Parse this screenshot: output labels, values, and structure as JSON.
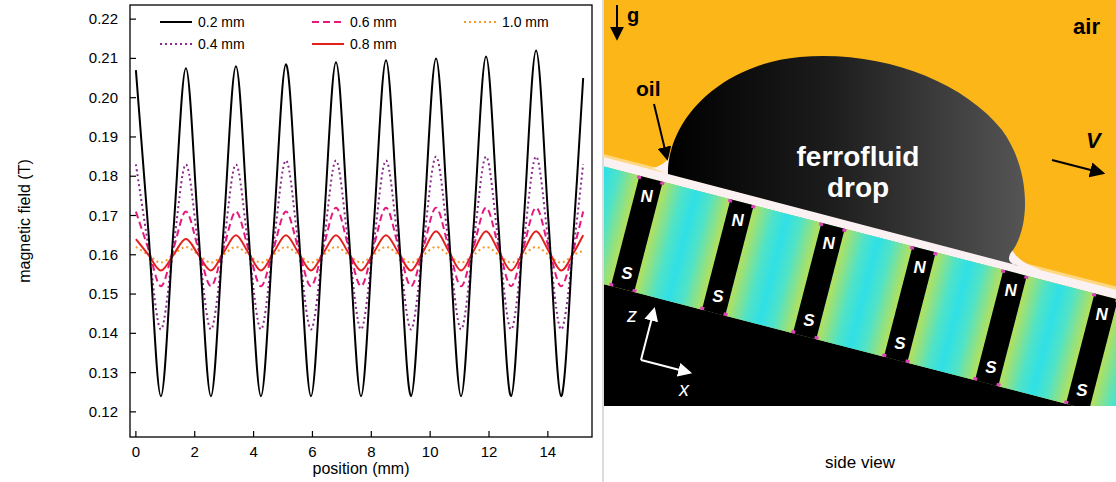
{
  "chart_data": {
    "type": "line",
    "x_label": "position (mm)",
    "y_label": "magnetic field (T)",
    "x": [
      0,
      0.425,
      0.85,
      1.275,
      1.7,
      2.125,
      2.55,
      2.975,
      3.4,
      3.825,
      4.25,
      4.675,
      5.1,
      5.525,
      5.95,
      6.375,
      6.8,
      7.225,
      7.65,
      8.075,
      8.5,
      8.925,
      9.35,
      9.775,
      10.2,
      10.625,
      11.05,
      11.475,
      11.9,
      12.325,
      12.75,
      13.175,
      13.6,
      14.025,
      14.45,
      14.875,
      15.2
    ],
    "series": [
      {
        "name": "0.2 mm",
        "color": "#000000",
        "line_style": "solid",
        "values": [
          0.207,
          0.166,
          0.124,
          0.166,
          0.2075,
          0.166,
          0.124,
          0.166,
          0.208,
          0.166,
          0.124,
          0.166,
          0.2085,
          0.1665,
          0.124,
          0.1665,
          0.209,
          0.1665,
          0.124,
          0.1665,
          0.2095,
          0.1665,
          0.124,
          0.167,
          0.21,
          0.167,
          0.124,
          0.167,
          0.2105,
          0.167,
          0.124,
          0.168,
          0.212,
          0.168,
          0.124,
          0.166,
          0.205
        ]
      },
      {
        "name": "0.4 mm",
        "color": "#8a2a8c",
        "line_style": "dotted",
        "values": [
          0.183,
          0.162,
          0.141,
          0.162,
          0.183,
          0.162,
          0.141,
          0.162,
          0.183,
          0.162,
          0.141,
          0.1625,
          0.184,
          0.1625,
          0.141,
          0.1625,
          0.184,
          0.1625,
          0.141,
          0.1625,
          0.184,
          0.1625,
          0.141,
          0.163,
          0.185,
          0.163,
          0.141,
          0.163,
          0.185,
          0.163,
          0.141,
          0.163,
          0.185,
          0.163,
          0.141,
          0.162,
          0.183
        ]
      },
      {
        "name": "0.6 mm",
        "color": "#e8177d",
        "line_style": "dashed",
        "values": [
          0.171,
          0.1615,
          0.152,
          0.1615,
          0.171,
          0.1615,
          0.152,
          0.1615,
          0.171,
          0.1615,
          0.152,
          0.1615,
          0.171,
          0.1615,
          0.152,
          0.162,
          0.172,
          0.162,
          0.152,
          0.162,
          0.172,
          0.162,
          0.152,
          0.162,
          0.172,
          0.162,
          0.152,
          0.162,
          0.172,
          0.162,
          0.152,
          0.162,
          0.172,
          0.162,
          0.152,
          0.1615,
          0.171
        ]
      },
      {
        "name": "0.8 mm",
        "color": "#e3201c",
        "line_style": "solid",
        "values": [
          0.164,
          0.16,
          0.156,
          0.16,
          0.164,
          0.16,
          0.156,
          0.1605,
          0.165,
          0.1605,
          0.156,
          0.1605,
          0.165,
          0.1605,
          0.156,
          0.1605,
          0.165,
          0.1605,
          0.156,
          0.1605,
          0.165,
          0.1605,
          0.156,
          0.161,
          0.166,
          0.161,
          0.156,
          0.161,
          0.166,
          0.161,
          0.156,
          0.161,
          0.166,
          0.161,
          0.156,
          0.1605,
          0.165
        ]
      },
      {
        "name": "1.0 mm",
        "color": "#f39a2b",
        "line_style": "dotted",
        "values": [
          0.162,
          0.16,
          0.158,
          0.16,
          0.162,
          0.16,
          0.158,
          0.16,
          0.162,
          0.16,
          0.158,
          0.16,
          0.162,
          0.16,
          0.158,
          0.16,
          0.162,
          0.16,
          0.158,
          0.16,
          0.162,
          0.16,
          0.158,
          0.16,
          0.162,
          0.16,
          0.158,
          0.16,
          0.162,
          0.16,
          0.158,
          0.16,
          0.162,
          0.16,
          0.158,
          0.16,
          0.161
        ]
      }
    ],
    "xlim": [
      -0.2,
      15.5
    ],
    "xticks": [
      0,
      2,
      4,
      6,
      8,
      10,
      12,
      14
    ],
    "ylim": [
      0.1136,
      0.2236
    ],
    "yticks": [
      0.12,
      0.13,
      0.14,
      0.15,
      0.16,
      0.17,
      0.18,
      0.19,
      {
        "value": 0.2,
        "label": "0.20"
      },
      0.21,
      0.22
    ],
    "grid": false,
    "legend": "top"
  },
  "diagram": {
    "labels": {
      "gravity": "g",
      "oil": "oil",
      "air": "air",
      "drop": "ferrofluid drop",
      "velocity": "V",
      "z_axis": "z",
      "x_axis": "x"
    },
    "magnets": [
      {
        "top": "N",
        "bottom": "S"
      },
      {
        "top": "N",
        "bottom": "S"
      },
      {
        "top": "N",
        "bottom": "S"
      },
      {
        "top": "N",
        "bottom": "S"
      },
      {
        "top": "N",
        "bottom": "S"
      },
      {
        "top": "N",
        "bottom": "S"
      }
    ],
    "caption": "side view"
  }
}
